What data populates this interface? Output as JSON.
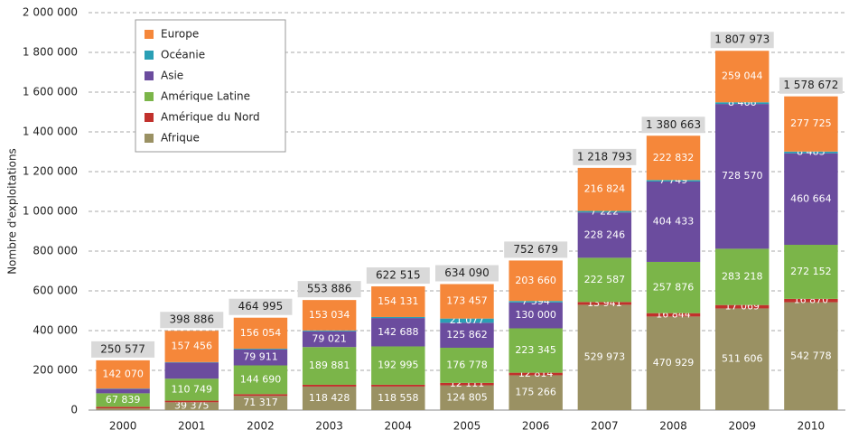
{
  "chart_data": {
    "type": "stacked_bar",
    "y_label": "Nombre d'exploitations",
    "categories": [
      "2000",
      "2001",
      "2002",
      "2003",
      "2004",
      "2005",
      "2006",
      "2007",
      "2008",
      "2009",
      "2010"
    ],
    "series": [
      {
        "name": "Europe",
        "color": "#f5873a",
        "values": [
          142070,
          157456,
          156054,
          153034,
          154131,
          173457,
          203660,
          216824,
          222832,
          259044,
          277725
        ],
        "value_labels": [
          "142 070",
          "157 456",
          "156 054",
          "153 034",
          "154 131",
          "173 457",
          "203 660",
          "216 824",
          "222 832",
          "259 044",
          "277 725"
        ]
      },
      {
        "name": "Océanie",
        "color": "#2a9fb5",
        "values": [
          2000,
          2000,
          4023,
          4522,
          5143,
          21077,
          7594,
          7222,
          7749,
          8466,
          8483
        ],
        "value_labels": [
          null,
          null,
          null,
          null,
          null,
          "21 077",
          "7 594",
          "7 222",
          "7 749",
          "8 466",
          "8 483"
        ]
      },
      {
        "name": "Asie",
        "color": "#6b4c9e",
        "values": [
          22000,
          81306,
          79911,
          79021,
          142688,
          125862,
          130000,
          228246,
          404433,
          728570,
          460664
        ],
        "value_labels": [
          null,
          null,
          "79 911",
          "79 021",
          "142 688",
          "125 862",
          "130 000",
          "228 246",
          "404 433",
          "728 570",
          "460 664"
        ]
      },
      {
        "name": "Amérique Latine",
        "color": "#7bb549",
        "values": [
          67839,
          110749,
          144690,
          189881,
          192995,
          176778,
          223345,
          222587,
          257876,
          283218,
          272152
        ],
        "value_labels": [
          "67 839",
          "110 749",
          "144 690",
          "189 881",
          "192 995",
          "176 778",
          "223 345",
          "222 587",
          "257 876",
          "283 218",
          "272 152"
        ]
      },
      {
        "name": "Amérique du Nord",
        "color": "#c1312c",
        "values": [
          8000,
          8000,
          9000,
          9000,
          9000,
          12111,
          12814,
          13941,
          16844,
          17069,
          16870
        ],
        "value_labels": [
          null,
          null,
          null,
          null,
          null,
          "12 111",
          "12 814",
          "13 941",
          "16 844",
          "17 069",
          "16 870"
        ]
      },
      {
        "name": "Afrique",
        "color": "#9a9163",
        "values": [
          8668,
          39375,
          71317,
          118428,
          118558,
          124805,
          175266,
          529973,
          470929,
          511606,
          542778
        ],
        "value_labels": [
          null,
          "39 375",
          "71 317",
          "118 428",
          "118 558",
          "124 805",
          "175 266",
          "529 973",
          "470 929",
          "511 606",
          "542 778"
        ]
      }
    ],
    "totals": [
      250577,
      398886,
      464995,
      553886,
      622515,
      634090,
      752679,
      1218793,
      1380663,
      1807973,
      1578672
    ],
    "total_labels": [
      "250 577",
      "398 886",
      "464 995",
      "553 886",
      "622 515",
      "634 090",
      "752 679",
      "1 218 793",
      "1 380 663",
      "1 807 973",
      "1 578 672"
    ],
    "ylim": [
      0,
      2000000
    ],
    "yticks": [
      0,
      {
        "value": 200000,
        "label": "200 000"
      },
      {
        "value": 400000,
        "label": "400 000"
      },
      {
        "value": 600000,
        "label": "600 000"
      },
      {
        "value": 800000,
        "label": "800 000"
      },
      {
        "value": 1000000,
        "label": "1 000 000"
      },
      {
        "value": 1200000,
        "label": "1 200 000"
      },
      {
        "value": 1400000,
        "label": "1 400 000"
      },
      {
        "value": 1600000,
        "label": "1 600 000"
      },
      {
        "value": 1800000,
        "label": "1 800 000"
      },
      {
        "value": 2000000,
        "label": "2 000 000"
      }
    ],
    "grid": true,
    "legend": "top-left"
  }
}
